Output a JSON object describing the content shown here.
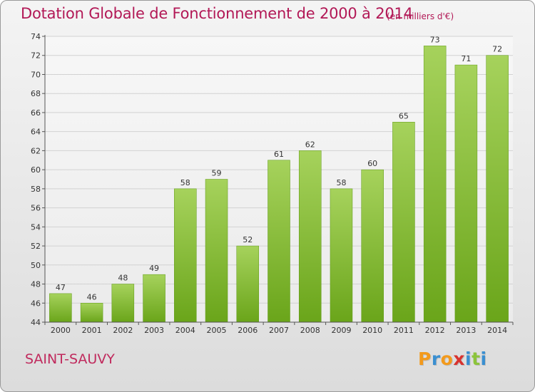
{
  "header": {
    "title": "Dotation Globale de Fonctionnement de 2000 à 2014",
    "subtitle": "(en milliers d'€)"
  },
  "footer": {
    "commune": "SAINT-SAUVY",
    "logo_letters": [
      "P",
      "r",
      "o",
      "x",
      "i",
      "t",
      "i"
    ],
    "logo_colors": [
      "#f39a1c",
      "#3a8fd1",
      "#f39a1c",
      "#d8332f",
      "#3a8fd1",
      "#8cc43b",
      "#3a8fd1"
    ]
  },
  "chart_data": {
    "type": "bar",
    "categories": [
      "2000",
      "2001",
      "2002",
      "2003",
      "2004",
      "2005",
      "2006",
      "2007",
      "2008",
      "2009",
      "2010",
      "2011",
      "2012",
      "2013",
      "2014"
    ],
    "values": [
      47,
      46,
      48,
      49,
      58,
      59,
      52,
      61,
      62,
      58,
      60,
      65,
      73,
      71,
      72
    ],
    "value_labels": [
      "47",
      "46",
      "48",
      "49",
      "58",
      "59",
      "52",
      "61",
      "62",
      "58",
      "60",
      "65",
      "73",
      "71",
      "72"
    ],
    "ylim": [
      44,
      74
    ],
    "yticks": [
      44,
      46,
      48,
      50,
      52,
      54,
      56,
      58,
      60,
      62,
      64,
      66,
      68,
      70,
      72,
      74
    ],
    "grid": true,
    "bar_color_top": "#a6d25c",
    "bar_color_bottom": "#6aa51a"
  }
}
